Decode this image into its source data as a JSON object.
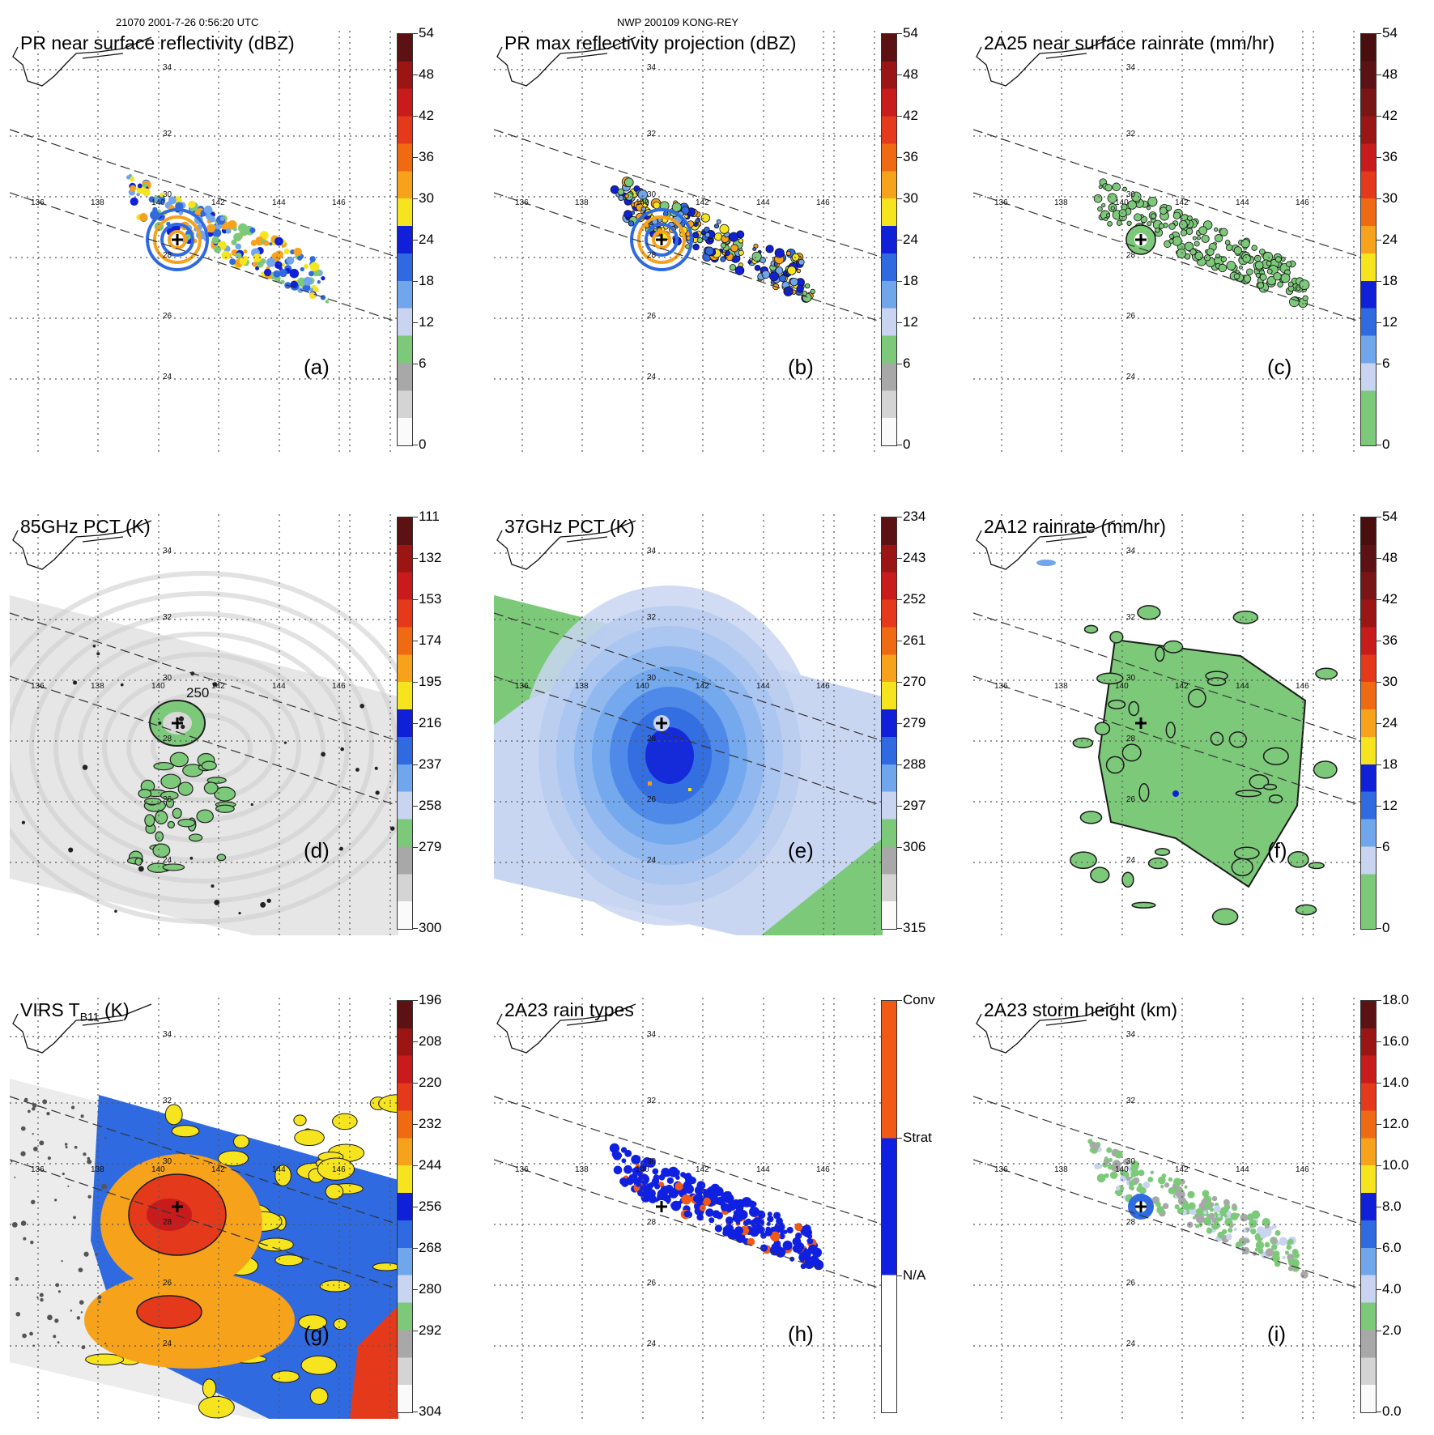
{
  "header": {
    "left": "21070 2001-7-26 0:56:20 UTC",
    "center": "NWP 200109 KONG-REY"
  },
  "map_grid": {
    "lon_labels": [
      "136",
      "138",
      "140",
      "142",
      "144",
      "146"
    ],
    "lat_labels": [
      "34",
      "32",
      "30",
      "28",
      "26",
      "24"
    ]
  },
  "panels": [
    {
      "id": "a",
      "title": "PR near surface reflectivity (dBZ)",
      "label": "(a)",
      "type": "swath",
      "fill": "dbz",
      "colorbar": {
        "ticks": [
          "54",
          "48",
          "42",
          "36",
          "30",
          "24",
          "18",
          "12",
          "6",
          "0"
        ],
        "colors": [
          "#fafafa",
          "#d4d4d4",
          "#a8a8a8",
          "#7dc97a",
          "#c8d4f0",
          "#6fa6ec",
          "#2f6ae0",
          "#1020d8",
          "#f6e51e",
          "#f7a21b",
          "#f06a14",
          "#e5391c",
          "#c81b1b",
          "#9b1515",
          "#5c1212"
        ]
      }
    },
    {
      "id": "b",
      "title": "PR max reflectivity projection (dBZ)",
      "label": "(b)",
      "type": "swath",
      "fill": "dbz",
      "colorbar": {
        "ticks": [
          "54",
          "48",
          "42",
          "36",
          "30",
          "24",
          "18",
          "12",
          "6",
          "0"
        ],
        "colors": [
          "#fafafa",
          "#d4d4d4",
          "#a8a8a8",
          "#7dc97a",
          "#c8d4f0",
          "#6fa6ec",
          "#2f6ae0",
          "#1020d8",
          "#f6e51e",
          "#f7a21b",
          "#f06a14",
          "#e5391c",
          "#c81b1b",
          "#9b1515",
          "#5c1212"
        ]
      }
    },
    {
      "id": "c",
      "title": "2A25 near surface rainrate (mm/hr)",
      "label": "(c)",
      "type": "swath",
      "fill": "rain",
      "colorbar": {
        "ticks": [
          "54",
          "48",
          "42",
          "36",
          "30",
          "24",
          "18",
          "12",
          "6",
          "0"
        ],
        "colors": [
          "#7dc97a",
          "#7dc97a",
          "#c8d4f0",
          "#6fa6ec",
          "#2f6ae0",
          "#1020d8",
          "#f6e51e",
          "#f7a21b",
          "#f06a14",
          "#e5391c",
          "#c81b1b",
          "#9b1515",
          "#7a1515",
          "#5c1212",
          "#4a0e0e"
        ]
      }
    },
    {
      "id": "d",
      "title": "85GHz PCT (K)",
      "label": "(d)",
      "type": "wide",
      "fill": "gray",
      "colorbar": {
        "ticks": [
          "111",
          "132",
          "153",
          "174",
          "195",
          "216",
          "237",
          "258",
          "279",
          "300"
        ],
        "colors": [
          "#fafafa",
          "#d4d4d4",
          "#a8a8a8",
          "#7dc97a",
          "#c8d4f0",
          "#6fa6ec",
          "#2f6ae0",
          "#1020d8",
          "#f6e51e",
          "#f7a21b",
          "#f06a14",
          "#e5391c",
          "#c81b1b",
          "#9b1515",
          "#5c1212"
        ]
      }
    },
    {
      "id": "e",
      "title": "37GHz PCT (K)",
      "label": "(e)",
      "type": "wide",
      "fill": "blue",
      "colorbar": {
        "ticks": [
          "234",
          "243",
          "252",
          "261",
          "270",
          "279",
          "288",
          "297",
          "306",
          "315"
        ],
        "colors": [
          "#fafafa",
          "#d4d4d4",
          "#a8a8a8",
          "#7dc97a",
          "#c8d4f0",
          "#6fa6ec",
          "#2f6ae0",
          "#1020d8",
          "#f6e51e",
          "#f7a21b",
          "#f06a14",
          "#e5391c",
          "#c81b1b",
          "#9b1515",
          "#5c1212"
        ]
      }
    },
    {
      "id": "f",
      "title": "2A12 rainrate (mm/hr)",
      "label": "(f)",
      "type": "wide",
      "fill": "green",
      "colorbar": {
        "ticks": [
          "54",
          "48",
          "42",
          "36",
          "30",
          "24",
          "18",
          "12",
          "6",
          "0"
        ],
        "colors": [
          "#7dc97a",
          "#7dc97a",
          "#c8d4f0",
          "#6fa6ec",
          "#2f6ae0",
          "#1020d8",
          "#f6e51e",
          "#f7a21b",
          "#f06a14",
          "#e5391c",
          "#c81b1b",
          "#9b1515",
          "#7a1515",
          "#5c1212",
          "#4a0e0e"
        ]
      }
    },
    {
      "id": "g",
      "title": "VIRS T",
      "title_sub": "B11",
      "title_end": "(K)",
      "label": "(g)",
      "type": "wide",
      "fill": "ir",
      "colorbar": {
        "ticks": [
          "196",
          "208",
          "220",
          "232",
          "244",
          "256",
          "268",
          "280",
          "292",
          "304"
        ],
        "colors": [
          "#fafafa",
          "#d4d4d4",
          "#a8a8a8",
          "#7dc97a",
          "#c8d4f0",
          "#6fa6ec",
          "#2f6ae0",
          "#1020d8",
          "#f6e51e",
          "#f7a21b",
          "#f06a14",
          "#e5391c",
          "#c81b1b",
          "#9b1515",
          "#5c1212"
        ]
      }
    },
    {
      "id": "h",
      "title": "2A23 rain types",
      "label": "(h)",
      "type": "swath",
      "fill": "types",
      "colorbar": {
        "ticks": [
          "Conv",
          "Strat",
          "N/A"
        ],
        "colors": [
          "#ffffff",
          "#1020e0",
          "#f05a14"
        ]
      }
    },
    {
      "id": "i",
      "title": "2A23 storm height (km)",
      "label": "(i)",
      "type": "swath",
      "fill": "height",
      "colorbar": {
        "ticks": [
          "18.0",
          "16.0",
          "14.0",
          "12.0",
          "10.0",
          "8.0",
          "6.0",
          "4.0",
          "2.0",
          "0.0"
        ],
        "colors": [
          "#fafafa",
          "#d4d4d4",
          "#a8a8a8",
          "#7dc97a",
          "#c8d4f0",
          "#6fa6ec",
          "#2f6ae0",
          "#1020d8",
          "#f6e51e",
          "#f7a21b",
          "#f06a14",
          "#e5391c",
          "#c81b1b",
          "#9b1515",
          "#5c1212"
        ]
      }
    }
  ],
  "annotations": {
    "contour_label_d": "250"
  }
}
